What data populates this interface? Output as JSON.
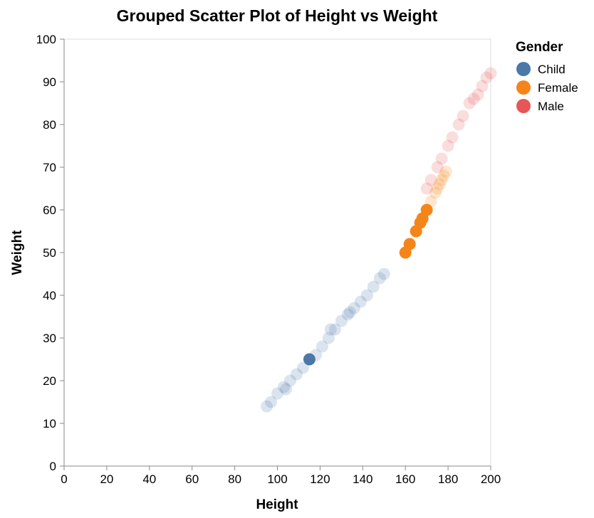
{
  "chart_data": {
    "type": "scatter",
    "title": "Grouped Scatter Plot of Height vs Weight",
    "xlabel": "Height",
    "ylabel": "Weight",
    "xlim": [
      0,
      200
    ],
    "ylim": [
      0,
      100
    ],
    "x_ticks": [
      "0",
      "20",
      "40",
      "60",
      "80",
      "100",
      "120",
      "140",
      "160",
      "180",
      "200"
    ],
    "y_ticks": [
      "0",
      "10",
      "20",
      "30",
      "40",
      "50",
      "60",
      "70",
      "80",
      "90",
      "100"
    ],
    "grid": false,
    "legend": {
      "title": "Gender",
      "position": "right"
    },
    "series": [
      {
        "name": "Child",
        "color": "#4c78a8",
        "points": [
          {
            "x": 95,
            "y": 14,
            "highlight": false
          },
          {
            "x": 97,
            "y": 15,
            "highlight": false
          },
          {
            "x": 100,
            "y": 17,
            "highlight": false
          },
          {
            "x": 103,
            "y": 18.5,
            "highlight": false
          },
          {
            "x": 104,
            "y": 18,
            "highlight": false
          },
          {
            "x": 106,
            "y": 20,
            "highlight": false
          },
          {
            "x": 109,
            "y": 21.5,
            "highlight": false
          },
          {
            "x": 112,
            "y": 23,
            "highlight": false
          },
          {
            "x": 115,
            "y": 25,
            "highlight": true
          },
          {
            "x": 118,
            "y": 26,
            "highlight": false
          },
          {
            "x": 121,
            "y": 28,
            "highlight": false
          },
          {
            "x": 124,
            "y": 30,
            "highlight": false
          },
          {
            "x": 125,
            "y": 32,
            "highlight": false
          },
          {
            "x": 127,
            "y": 32,
            "highlight": false
          },
          {
            "x": 130,
            "y": 34,
            "highlight": false
          },
          {
            "x": 133,
            "y": 35.5,
            "highlight": false
          },
          {
            "x": 134,
            "y": 36,
            "highlight": false
          },
          {
            "x": 136,
            "y": 37,
            "highlight": false
          },
          {
            "x": 139,
            "y": 38.5,
            "highlight": false
          },
          {
            "x": 142,
            "y": 40,
            "highlight": false
          },
          {
            "x": 145,
            "y": 42,
            "highlight": false
          },
          {
            "x": 148,
            "y": 44,
            "highlight": false
          },
          {
            "x": 150,
            "y": 45,
            "highlight": false
          }
        ]
      },
      {
        "name": "Female",
        "color": "#f58518",
        "points": [
          {
            "x": 160,
            "y": 50,
            "highlight": true
          },
          {
            "x": 162,
            "y": 52,
            "highlight": true
          },
          {
            "x": 165,
            "y": 55,
            "highlight": true
          },
          {
            "x": 167,
            "y": 57,
            "highlight": true
          },
          {
            "x": 168,
            "y": 58,
            "highlight": true
          },
          {
            "x": 170,
            "y": 60,
            "highlight": true
          },
          {
            "x": 172,
            "y": 62,
            "highlight": false
          },
          {
            "x": 174,
            "y": 64,
            "highlight": false
          },
          {
            "x": 175,
            "y": 65,
            "highlight": false
          },
          {
            "x": 176,
            "y": 66,
            "highlight": false
          },
          {
            "x": 177,
            "y": 67,
            "highlight": false
          },
          {
            "x": 178,
            "y": 68,
            "highlight": false
          },
          {
            "x": 179,
            "y": 69,
            "highlight": false
          }
        ]
      },
      {
        "name": "Male",
        "color": "#e45756",
        "points": [
          {
            "x": 170,
            "y": 65,
            "highlight": false
          },
          {
            "x": 172,
            "y": 67,
            "highlight": false
          },
          {
            "x": 175,
            "y": 70,
            "highlight": false
          },
          {
            "x": 177,
            "y": 72,
            "highlight": false
          },
          {
            "x": 180,
            "y": 75,
            "highlight": false
          },
          {
            "x": 182,
            "y": 77,
            "highlight": false
          },
          {
            "x": 185,
            "y": 80,
            "highlight": false
          },
          {
            "x": 187,
            "y": 82,
            "highlight": false
          },
          {
            "x": 190,
            "y": 85,
            "highlight": false
          },
          {
            "x": 192,
            "y": 86,
            "highlight": false
          },
          {
            "x": 194,
            "y": 87,
            "highlight": false
          },
          {
            "x": 196,
            "y": 89,
            "highlight": false
          },
          {
            "x": 198,
            "y": 91,
            "highlight": false
          },
          {
            "x": 200,
            "y": 92,
            "highlight": false
          }
        ]
      }
    ]
  }
}
